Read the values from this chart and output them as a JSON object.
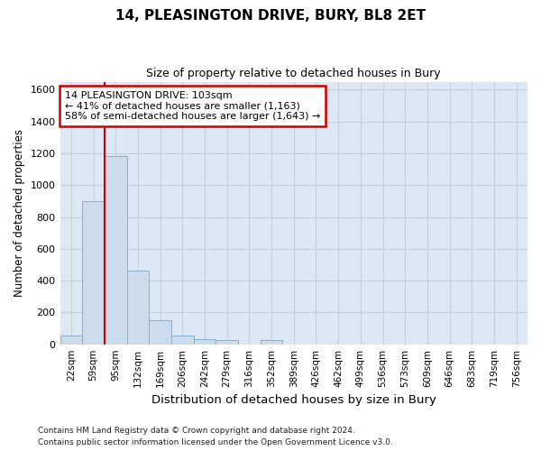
{
  "title": "14, PLEASINGTON DRIVE, BURY, BL8 2ET",
  "subtitle": "Size of property relative to detached houses in Bury",
  "xlabel": "Distribution of detached houses by size in Bury",
  "ylabel": "Number of detached properties",
  "bin_labels": [
    "22sqm",
    "59sqm",
    "95sqm",
    "132sqm",
    "169sqm",
    "206sqm",
    "242sqm",
    "279sqm",
    "316sqm",
    "352sqm",
    "389sqm",
    "426sqm",
    "462sqm",
    "499sqm",
    "536sqm",
    "573sqm",
    "609sqm",
    "646sqm",
    "683sqm",
    "719sqm",
    "756sqm"
  ],
  "bar_heights": [
    55,
    900,
    1185,
    465,
    150,
    55,
    30,
    25,
    0,
    25,
    0,
    0,
    0,
    0,
    0,
    0,
    0,
    0,
    0,
    0,
    0
  ],
  "bar_color": "#ccdcec",
  "bar_edgecolor": "#8ab0d0",
  "property_label": "14 PLEASINGTON DRIVE: 103sqm",
  "annotation_line1": "← 41% of detached houses are smaller (1,163)",
  "annotation_line2": "58% of semi-detached houses are larger (1,643) →",
  "annotation_box_color": "#cc0000",
  "vline_color": "#cc0000",
  "vline_x": 1.5,
  "ylim": [
    0,
    1650
  ],
  "yticks": [
    0,
    200,
    400,
    600,
    800,
    1000,
    1200,
    1400,
    1600
  ],
  "grid_color": "#c0d0e0",
  "plot_bg_color": "#dce8f4",
  "fig_bg_color": "#ffffff",
  "footnote1": "Contains HM Land Registry data © Crown copyright and database right 2024.",
  "footnote2": "Contains public sector information licensed under the Open Government Licence v3.0."
}
